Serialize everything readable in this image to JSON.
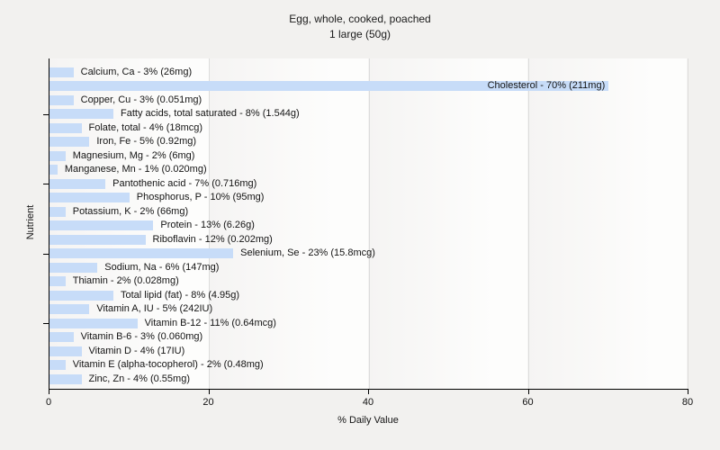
{
  "header": {
    "title": "Egg, whole, cooked, poached",
    "subtitle": "1 large (50g)"
  },
  "chart_data": {
    "type": "bar",
    "orientation": "horizontal",
    "title": "Egg, whole, cooked, poached",
    "subtitle": "1 large (50g)",
    "xlabel": "% Daily Value",
    "ylabel": "Nutrient",
    "xlim": [
      0,
      80
    ],
    "x_ticks": [
      0,
      20,
      40,
      60,
      80
    ],
    "gridline_ticks": [
      20,
      40,
      60
    ],
    "y_tick_rows": [
      3,
      8,
      13,
      18
    ],
    "grid": "vertical-light",
    "legend": "none",
    "bar_color": "#c7dcf8",
    "items": [
      {
        "nutrient": "Calcium, Ca",
        "percent": 3,
        "amount": "26mg",
        "label": "Calcium, Ca - 3% (26mg)",
        "label_inside": false
      },
      {
        "nutrient": "Cholesterol",
        "percent": 70,
        "amount": "211mg",
        "label": "Cholesterol - 70% (211mg)",
        "label_inside": true
      },
      {
        "nutrient": "Copper, Cu",
        "percent": 3,
        "amount": "0.051mg",
        "label": "Copper, Cu - 3% (0.051mg)",
        "label_inside": false
      },
      {
        "nutrient": "Fatty acids, total saturated",
        "percent": 8,
        "amount": "1.544g",
        "label": "Fatty acids, total saturated - 8% (1.544g)",
        "label_inside": false
      },
      {
        "nutrient": "Folate, total",
        "percent": 4,
        "amount": "18mcg",
        "label": "Folate, total - 4% (18mcg)",
        "label_inside": false
      },
      {
        "nutrient": "Iron, Fe",
        "percent": 5,
        "amount": "0.92mg",
        "label": "Iron, Fe - 5% (0.92mg)",
        "label_inside": false
      },
      {
        "nutrient": "Magnesium, Mg",
        "percent": 2,
        "amount": "6mg",
        "label": "Magnesium, Mg - 2% (6mg)",
        "label_inside": false
      },
      {
        "nutrient": "Manganese, Mn",
        "percent": 1,
        "amount": "0.020mg",
        "label": "Manganese, Mn - 1% (0.020mg)",
        "label_inside": false
      },
      {
        "nutrient": "Pantothenic acid",
        "percent": 7,
        "amount": "0.716mg",
        "label": "Pantothenic acid - 7% (0.716mg)",
        "label_inside": false
      },
      {
        "nutrient": "Phosphorus, P",
        "percent": 10,
        "amount": "95mg",
        "label": "Phosphorus, P - 10% (95mg)",
        "label_inside": false
      },
      {
        "nutrient": "Potassium, K",
        "percent": 2,
        "amount": "66mg",
        "label": "Potassium, K - 2% (66mg)",
        "label_inside": false
      },
      {
        "nutrient": "Protein",
        "percent": 13,
        "amount": "6.26g",
        "label": "Protein - 13% (6.26g)",
        "label_inside": false
      },
      {
        "nutrient": "Riboflavin",
        "percent": 12,
        "amount": "0.202mg",
        "label": "Riboflavin - 12% (0.202mg)",
        "label_inside": false
      },
      {
        "nutrient": "Selenium, Se",
        "percent": 23,
        "amount": "15.8mcg",
        "label": "Selenium, Se - 23% (15.8mcg)",
        "label_inside": false
      },
      {
        "nutrient": "Sodium, Na",
        "percent": 6,
        "amount": "147mg",
        "label": "Sodium, Na - 6% (147mg)",
        "label_inside": false
      },
      {
        "nutrient": "Thiamin",
        "percent": 2,
        "amount": "0.028mg",
        "label": "Thiamin - 2% (0.028mg)",
        "label_inside": false
      },
      {
        "nutrient": "Total lipid (fat)",
        "percent": 8,
        "amount": "4.95g",
        "label": "Total lipid (fat) - 8% (4.95g)",
        "label_inside": false
      },
      {
        "nutrient": "Vitamin A, IU",
        "percent": 5,
        "amount": "242IU",
        "label": "Vitamin A, IU - 5% (242IU)",
        "label_inside": false
      },
      {
        "nutrient": "Vitamin B-12",
        "percent": 11,
        "amount": "0.64mcg",
        "label": "Vitamin B-12 - 11% (0.64mcg)",
        "label_inside": false
      },
      {
        "nutrient": "Vitamin B-6",
        "percent": 3,
        "amount": "0.060mg",
        "label": "Vitamin B-6 - 3% (0.060mg)",
        "label_inside": false
      },
      {
        "nutrient": "Vitamin D",
        "percent": 4,
        "amount": "17IU",
        "label": "Vitamin D - 4% (17IU)",
        "label_inside": false
      },
      {
        "nutrient": "Vitamin E (alpha-tocopherol)",
        "percent": 2,
        "amount": "0.48mg",
        "label": "Vitamin E (alpha-tocopherol) - 2% (0.48mg)",
        "label_inside": false
      },
      {
        "nutrient": "Zinc, Zn",
        "percent": 4,
        "amount": "0.55mg",
        "label": "Zinc, Zn - 4% (0.55mg)",
        "label_inside": false
      }
    ]
  },
  "colors": {
    "figure_background": "#f2f1ef",
    "plot_background": "#fdfdfc",
    "bar_fill": "#c7dcf8",
    "gridline": "#dcdcdc",
    "axis": "#000000",
    "text": "#141414"
  }
}
